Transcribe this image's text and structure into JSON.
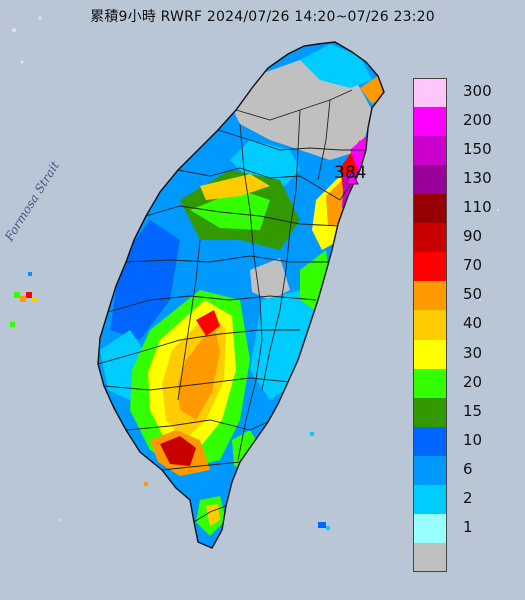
{
  "title": "累積9小時 RWRF 2024/07/26 14:20~07/26 23:20",
  "strait_label": "Formosa Strait",
  "max_value_label": "384",
  "legend": [
    {
      "label": "300",
      "color": "#ffc6fb"
    },
    {
      "label": "200",
      "color": "#ff00ff"
    },
    {
      "label": "150",
      "color": "#cc00cc"
    },
    {
      "label": "130",
      "color": "#990099"
    },
    {
      "label": "110",
      "color": "#960000"
    },
    {
      "label": "90",
      "color": "#c80000"
    },
    {
      "label": "70",
      "color": "#ff0000"
    },
    {
      "label": "50",
      "color": "#ff9900"
    },
    {
      "label": "40",
      "color": "#ffcc00"
    },
    {
      "label": "30",
      "color": "#ffff00"
    },
    {
      "label": "20",
      "color": "#33ff00"
    },
    {
      "label": "15",
      "color": "#339900"
    },
    {
      "label": "10",
      "color": "#0066ff"
    },
    {
      "label": "6",
      "color": "#0099ff"
    },
    {
      "label": "2",
      "color": "#00ccff"
    },
    {
      "label": "1",
      "color": "#99ffff"
    },
    {
      "label": "",
      "color": "#c0c0c0"
    }
  ],
  "colors": {
    "sea": "#b9c6d6",
    "county_border": "#222222",
    "no_rain": "#c0c0c0"
  }
}
